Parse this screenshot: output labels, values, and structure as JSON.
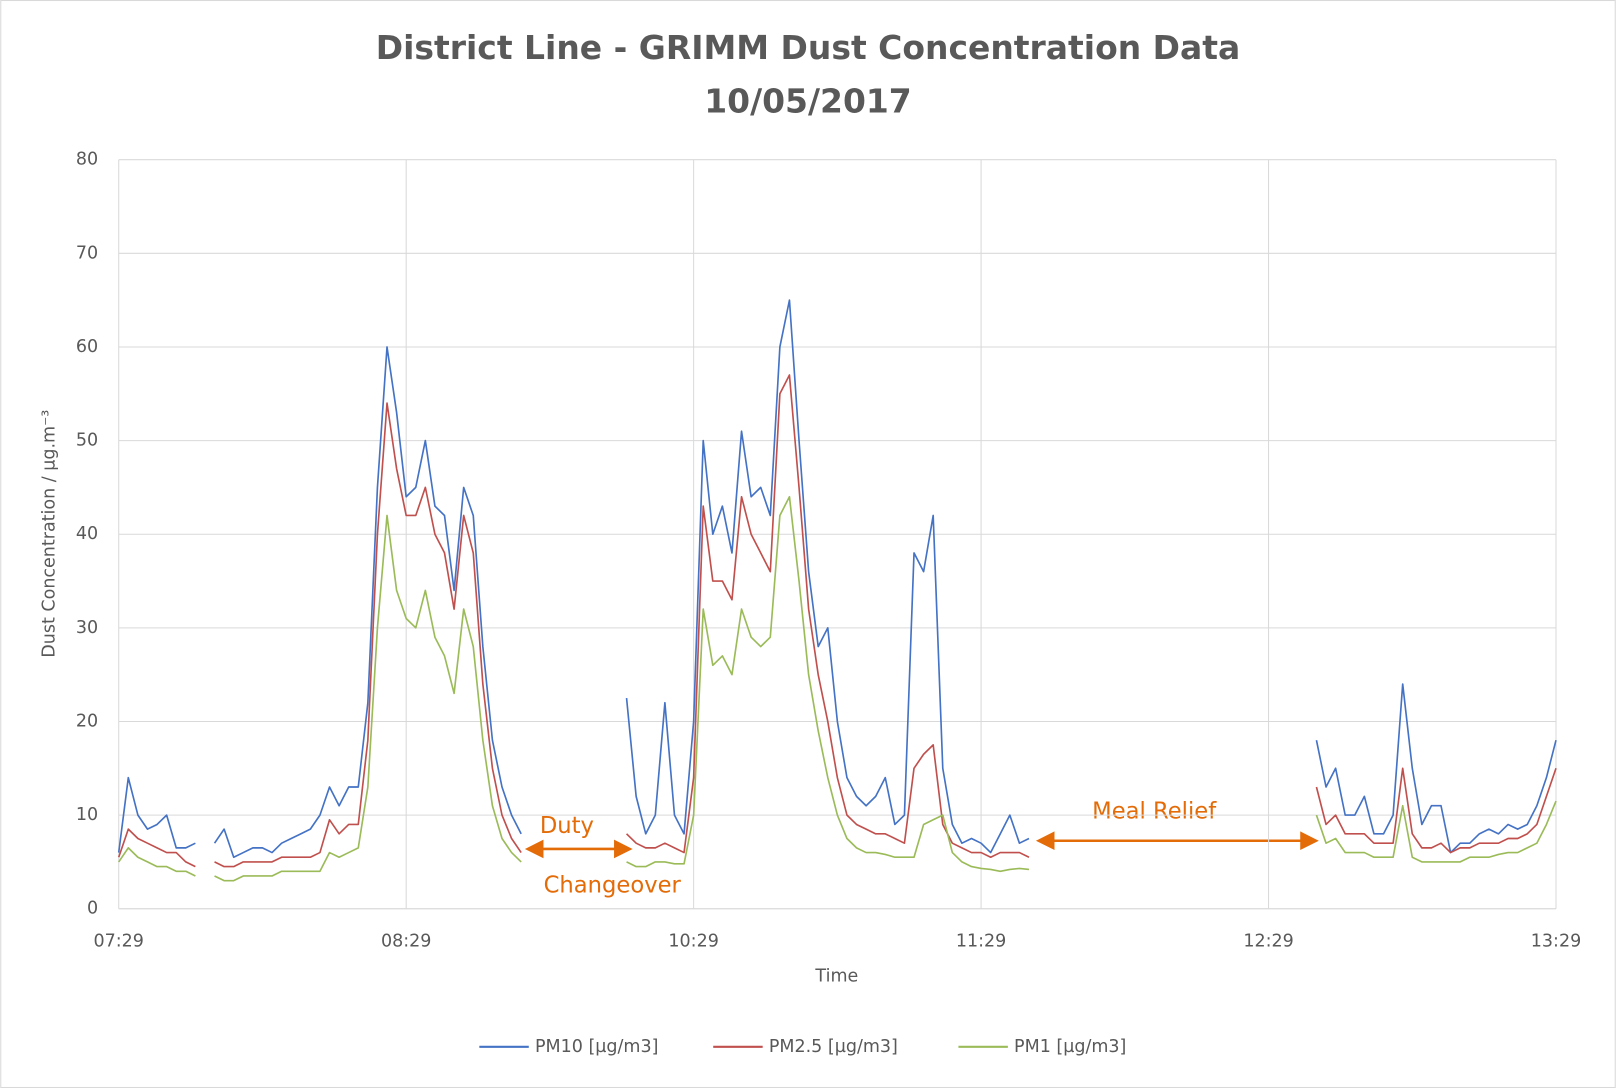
{
  "chart_data": {
    "type": "line",
    "title": "District Line  - GRIMM Dust Concentration Data",
    "subtitle": "10/05/2017",
    "x_label": "Time",
    "y_label": "Dust Concentration / µg.m⁻³",
    "ylim": [
      0,
      80
    ],
    "yticks": [
      0,
      10,
      20,
      30,
      40,
      50,
      60,
      70,
      80
    ],
    "grid": true,
    "legend": "bottom",
    "categories": [
      "07:29",
      null,
      null,
      null,
      null,
      null,
      null,
      null,
      null,
      null,
      null,
      null,
      null,
      null,
      null,
      null,
      null,
      null,
      null,
      null,
      null,
      null,
      null,
      null,
      null,
      null,
      null,
      null,
      null,
      null,
      "08:29",
      null,
      null,
      null,
      null,
      null,
      null,
      null,
      null,
      null,
      null,
      null,
      null,
      null,
      null,
      null,
      null,
      null,
      null,
      null,
      null,
      null,
      null,
      null,
      null,
      null,
      null,
      null,
      null,
      null,
      "10:29",
      null,
      null,
      null,
      null,
      null,
      null,
      null,
      null,
      null,
      null,
      null,
      null,
      null,
      null,
      null,
      null,
      null,
      null,
      null,
      null,
      null,
      null,
      null,
      null,
      null,
      null,
      null,
      null,
      null,
      "11:29",
      null,
      null,
      null,
      null,
      null,
      null,
      null,
      null,
      null,
      null,
      null,
      null,
      null,
      null,
      null,
      null,
      null,
      null,
      null,
      null,
      null,
      null,
      null,
      null,
      null,
      null,
      null,
      null,
      null,
      "12:29",
      null,
      null,
      null,
      null,
      null,
      null,
      null,
      null,
      null,
      null,
      null,
      null,
      null,
      null,
      null,
      null,
      null,
      null,
      null,
      null,
      null,
      null,
      null,
      null,
      null,
      null,
      null,
      null,
      null,
      "13:29"
    ],
    "series": [
      {
        "name": "PM10 [µg/m3]",
        "color": "#4472c4",
        "values": [
          6,
          14,
          10,
          8.5,
          9,
          10,
          6.5,
          6.5,
          7,
          null,
          7,
          8.5,
          5.5,
          6,
          6.5,
          6.5,
          6,
          7,
          7.5,
          8,
          8.5,
          10,
          13,
          11,
          13,
          13,
          22,
          45,
          60,
          53,
          44,
          45,
          50,
          43,
          42,
          34,
          45,
          42,
          28,
          18,
          13,
          10,
          8,
          null,
          null,
          null,
          null,
          null,
          null,
          null,
          null,
          null,
          null,
          22.5,
          12,
          8,
          10,
          22,
          10,
          8,
          20,
          50,
          40,
          43,
          38,
          51,
          44,
          45,
          42,
          60,
          65,
          50,
          36,
          28,
          30,
          20,
          14,
          12,
          11,
          12,
          14,
          9,
          10,
          38,
          36,
          42,
          15,
          9,
          7,
          7.5,
          7,
          6,
          8,
          10,
          7,
          7.5,
          null,
          null,
          null,
          null,
          null,
          null,
          null,
          null,
          null,
          null,
          null,
          null,
          null,
          null,
          null,
          null,
          null,
          null,
          null,
          null,
          null,
          null,
          null,
          null,
          null,
          null,
          null,
          null,
          null,
          18,
          13,
          15,
          10,
          10,
          12,
          8,
          8,
          10,
          24,
          15,
          9,
          11,
          11,
          6,
          7,
          7,
          8,
          8.5,
          8,
          9,
          8.5,
          9,
          11,
          14,
          18
        ]
      },
      {
        "name": "PM2.5 [µg/m3]",
        "color": "#c0504d",
        "values": [
          5.5,
          8.5,
          7.5,
          7,
          6.5,
          6,
          6,
          5,
          4.5,
          null,
          5,
          4.5,
          4.5,
          5,
          5,
          5,
          5,
          5.5,
          5.5,
          5.5,
          5.5,
          6,
          9.5,
          8,
          9,
          9,
          18,
          40,
          54,
          47,
          42,
          42,
          45,
          40,
          38,
          32,
          42,
          38,
          24,
          15,
          10,
          7.5,
          6,
          null,
          null,
          null,
          null,
          null,
          null,
          null,
          null,
          null,
          null,
          8,
          7,
          6.5,
          6.5,
          7,
          6.5,
          6,
          14,
          43,
          35,
          35,
          33,
          44,
          40,
          38,
          36,
          55,
          57,
          45,
          32,
          25,
          20,
          14,
          10,
          9,
          8.5,
          8,
          8,
          7.5,
          7,
          15,
          16.5,
          17.5,
          9,
          7,
          6.5,
          6,
          6,
          5.5,
          6,
          6,
          6,
          5.5,
          null,
          null,
          null,
          null,
          null,
          null,
          null,
          null,
          null,
          null,
          null,
          null,
          null,
          null,
          null,
          null,
          null,
          null,
          null,
          null,
          null,
          null,
          null,
          null,
          null,
          null,
          null,
          null,
          null,
          13,
          9,
          10,
          8,
          8,
          8,
          7,
          7,
          7,
          15,
          8,
          6.5,
          6.5,
          7,
          6,
          6.5,
          6.5,
          7,
          7,
          7,
          7.5,
          7.5,
          8,
          9,
          12,
          15
        ]
      },
      {
        "name": "PM1 [µg/m3]",
        "color": "#9bbb59",
        "values": [
          5,
          6.5,
          5.5,
          5,
          4.5,
          4.5,
          4,
          4,
          3.5,
          null,
          3.5,
          3,
          3,
          3.5,
          3.5,
          3.5,
          3.5,
          4,
          4,
          4,
          4,
          4,
          6,
          5.5,
          6,
          6.5,
          13,
          30,
          42,
          34,
          31,
          30,
          34,
          29,
          27,
          23,
          32,
          28,
          18,
          11,
          7.5,
          6,
          5,
          null,
          null,
          null,
          null,
          null,
          null,
          null,
          null,
          null,
          null,
          5,
          4.5,
          4.5,
          5,
          5,
          4.8,
          4.8,
          10,
          32,
          26,
          27,
          25,
          32,
          29,
          28,
          29,
          42,
          44,
          35,
          25,
          19,
          14,
          10,
          7.5,
          6.5,
          6,
          6,
          5.8,
          5.5,
          5.5,
          5.5,
          9,
          9.5,
          10,
          6,
          5,
          4.5,
          4.3,
          4.2,
          4,
          4.2,
          4.3,
          4.2,
          null,
          null,
          null,
          null,
          null,
          null,
          null,
          null,
          null,
          null,
          null,
          null,
          null,
          null,
          null,
          null,
          null,
          null,
          null,
          null,
          null,
          null,
          null,
          null,
          null,
          null,
          null,
          null,
          null,
          10,
          7,
          7.5,
          6,
          6,
          6,
          5.5,
          5.5,
          5.5,
          11,
          5.5,
          5,
          5,
          5,
          5,
          5,
          5.5,
          5.5,
          5.5,
          5.8,
          6,
          6,
          6.5,
          7,
          9,
          11.5
        ]
      }
    ],
    "annotations": [
      "Duty",
      "Changeover",
      "Meal Relief"
    ]
  }
}
